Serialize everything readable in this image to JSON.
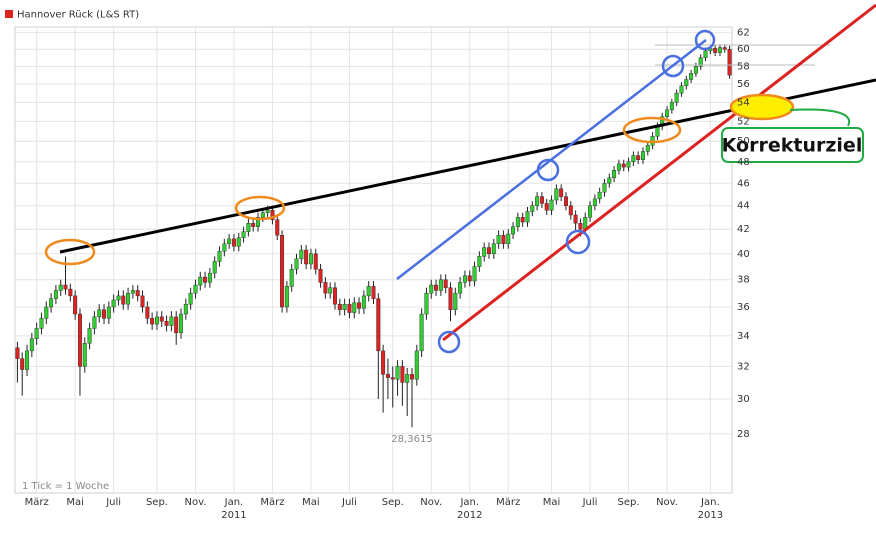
{
  "chart_data": {
    "type": "candlestick",
    "title": "Hannover Rück (L&S RT)",
    "title_marker_color": "#dd2222",
    "colors": {
      "up": "#33cc33",
      "down": "#dd2222",
      "wick": "#222222"
    },
    "log_scale": true,
    "grid": true,
    "ylim": [
      24.9,
      62.7
    ],
    "yticks": [
      28,
      30,
      32,
      34,
      36,
      38,
      40,
      42,
      44,
      46,
      48,
      50,
      52,
      54,
      56,
      58,
      60,
      62
    ],
    "categories": [
      null,
      null,
      null,
      null,
      "März",
      null,
      null,
      null,
      null,
      null,
      null,
      null,
      "Mai",
      null,
      null,
      null,
      null,
      null,
      null,
      null,
      "Juli",
      null,
      null,
      null,
      null,
      null,
      null,
      null,
      null,
      "Sep.",
      null,
      null,
      null,
      null,
      null,
      null,
      null,
      "Nov.",
      null,
      null,
      null,
      null,
      null,
      null,
      null,
      "Jan.",
      null,
      null,
      null,
      null,
      null,
      null,
      null,
      "März",
      null,
      null,
      null,
      null,
      null,
      null,
      null,
      "Mai",
      null,
      null,
      null,
      null,
      null,
      null,
      null,
      "Juli",
      null,
      null,
      null,
      null,
      null,
      null,
      null,
      null,
      "Sep.",
      null,
      null,
      null,
      null,
      null,
      null,
      null,
      "Nov.",
      null,
      null,
      null,
      null,
      null,
      null,
      null,
      "Jan.",
      null,
      null,
      null,
      null,
      null,
      null,
      null,
      "März",
      null,
      null,
      null,
      null,
      null,
      null,
      null,
      null,
      "Mai",
      null,
      null,
      null,
      null,
      null,
      null,
      null,
      "Juli",
      null,
      null,
      null,
      null,
      null,
      null,
      null,
      "Sep.",
      null,
      null,
      null,
      null,
      null,
      null,
      null,
      "Nov.",
      null,
      null,
      null,
      null,
      null,
      null,
      null,
      null,
      "Jan.",
      null,
      null,
      null,
      null
    ],
    "category_years": [
      null,
      null,
      null,
      null,
      null,
      null,
      null,
      null,
      null,
      null,
      null,
      null,
      null,
      null,
      null,
      null,
      null,
      null,
      null,
      null,
      null,
      null,
      null,
      null,
      null,
      null,
      null,
      null,
      null,
      null,
      null,
      null,
      null,
      null,
      null,
      null,
      null,
      null,
      null,
      null,
      null,
      null,
      null,
      null,
      null,
      "2011",
      null,
      null,
      null,
      null,
      null,
      null,
      null,
      null,
      null,
      null,
      null,
      null,
      null,
      null,
      null,
      null,
      null,
      null,
      null,
      null,
      null,
      null,
      null,
      null,
      null,
      null,
      null,
      null,
      null,
      null,
      null,
      null,
      null,
      null,
      null,
      null,
      null,
      null,
      null,
      null,
      null,
      null,
      null,
      null,
      null,
      null,
      null,
      null,
      "2012",
      null,
      null,
      null,
      null,
      null,
      null,
      null,
      null,
      null,
      null,
      null,
      null,
      null,
      null,
      null,
      null,
      null,
      null,
      null,
      null,
      null,
      null,
      null,
      null,
      null,
      null,
      null,
      null,
      null,
      null,
      null,
      null,
      null,
      null,
      null,
      null,
      null,
      null,
      null,
      null,
      null,
      null,
      null,
      null,
      null,
      null,
      null,
      null,
      null,
      "2013",
      null,
      null,
      null,
      null
    ],
    "open": [
      33.2,
      32.5,
      31.8,
      33.0,
      33.8,
      34.5,
      35.2,
      36.0,
      36.6,
      37.2,
      37.6,
      37.3,
      36.8,
      35.5,
      32.0,
      33.5,
      34.5,
      35.3,
      35.8,
      35.2,
      36.0,
      36.5,
      36.8,
      36.2,
      37.0,
      37.2,
      36.8,
      36.0,
      35.2,
      34.8,
      35.3,
      35.0,
      34.7,
      35.3,
      34.2,
      35.5,
      36.2,
      37.0,
      37.6,
      38.2,
      37.8,
      38.5,
      39.4,
      40.2,
      40.8,
      41.2,
      40.6,
      41.3,
      41.8,
      42.5,
      42.2,
      43.0,
      43.4,
      43.6,
      42.8,
      41.5,
      36.0,
      37.5,
      38.8,
      39.6,
      40.3,
      39.2,
      40.0,
      38.8,
      37.8,
      37.0,
      37.4,
      36.2,
      35.8,
      36.2,
      35.6,
      36.3,
      35.9,
      36.8,
      37.5,
      36.6,
      33.0,
      31.5,
      31.3,
      31.2,
      32.0,
      31.0,
      31.5,
      31.2,
      33.0,
      35.5,
      37.0,
      37.6,
      37.2,
      38.0,
      37.4,
      35.8,
      37.0,
      37.8,
      38.3,
      37.9,
      39.0,
      39.8,
      40.5,
      40.0,
      40.8,
      41.5,
      40.8,
      41.6,
      42.2,
      43.0,
      42.6,
      43.5,
      44.0,
      44.8,
      44.2,
      43.6,
      44.5,
      45.5,
      44.8,
      44.0,
      43.2,
      42.5,
      42.0,
      43.0,
      44.0,
      44.6,
      45.2,
      46.0,
      46.5,
      47.2,
      47.8,
      47.5,
      48.0,
      48.6,
      48.2,
      49.0,
      49.6,
      50.5,
      51.5,
      52.5,
      53.2,
      54.0,
      55.0,
      55.8,
      56.5,
      57.2,
      58.0,
      59.0,
      59.8,
      60.1,
      59.6,
      60.2,
      60.0
    ],
    "high": [
      33.6,
      32.9,
      33.4,
      34.2,
      34.9,
      35.6,
      36.4,
      37.0,
      37.6,
      38.0,
      39.8,
      37.7,
      37.2,
      35.9,
      33.9,
      34.9,
      35.7,
      36.2,
      36.2,
      36.4,
      36.9,
      37.2,
      37.2,
      37.4,
      37.6,
      37.6,
      37.2,
      36.4,
      35.6,
      35.7,
      35.7,
      35.4,
      35.7,
      35.7,
      35.9,
      36.6,
      37.4,
      38.0,
      38.6,
      38.6,
      38.9,
      39.8,
      40.6,
      41.2,
      41.6,
      41.6,
      41.7,
      42.2,
      42.9,
      42.9,
      43.4,
      43.8,
      44.0,
      44.0,
      43.2,
      41.9,
      37.9,
      39.2,
      40.0,
      40.7,
      40.7,
      40.4,
      40.4,
      39.2,
      38.2,
      37.8,
      37.8,
      36.6,
      36.6,
      36.6,
      36.7,
      36.7,
      37.2,
      37.9,
      37.9,
      37.0,
      33.4,
      32.5,
      32.0,
      32.4,
      32.4,
      31.9,
      31.9,
      33.4,
      35.9,
      37.4,
      38.0,
      38.0,
      38.4,
      38.4,
      37.8,
      37.4,
      38.2,
      38.7,
      38.7,
      39.4,
      40.2,
      40.9,
      40.9,
      41.2,
      41.9,
      41.9,
      42.0,
      42.6,
      43.4,
      43.4,
      43.9,
      44.4,
      45.2,
      45.2,
      44.6,
      44.9,
      45.9,
      45.9,
      45.2,
      44.4,
      43.6,
      42.9,
      43.4,
      44.4,
      45.0,
      45.6,
      46.4,
      46.9,
      47.6,
      48.2,
      48.2,
      48.4,
      49.0,
      49.0,
      49.4,
      50.0,
      50.9,
      51.9,
      52.9,
      53.6,
      54.4,
      55.4,
      56.2,
      56.9,
      57.6,
      58.4,
      59.4,
      60.2,
      60.5,
      60.5,
      60.6,
      60.6,
      60.4
    ],
    "low": [
      31.0,
      30.2,
      31.4,
      32.6,
      33.4,
      34.1,
      34.8,
      35.6,
      36.2,
      36.8,
      36.9,
      36.4,
      35.1,
      30.2,
      31.6,
      33.1,
      34.1,
      34.9,
      34.8,
      34.8,
      35.6,
      36.1,
      35.8,
      35.8,
      36.6,
      36.4,
      35.6,
      34.8,
      34.4,
      34.4,
      34.6,
      34.3,
      34.3,
      33.4,
      33.8,
      35.1,
      35.8,
      36.6,
      37.2,
      37.4,
      37.4,
      38.1,
      39.0,
      39.8,
      40.4,
      40.2,
      40.2,
      40.9,
      41.4,
      41.8,
      41.8,
      42.6,
      43.0,
      42.4,
      41.1,
      35.6,
      35.6,
      37.1,
      38.4,
      39.2,
      38.8,
      38.8,
      38.4,
      37.4,
      36.6,
      36.6,
      35.8,
      35.4,
      35.4,
      35.2,
      35.2,
      35.5,
      35.5,
      36.4,
      36.2,
      30.0,
      29.2,
      30.0,
      29.5,
      30.2,
      29.6,
      29.0,
      28.3615,
      30.8,
      32.6,
      35.1,
      36.6,
      36.8,
      36.8,
      37.0,
      35.0,
      35.4,
      36.6,
      37.4,
      37.5,
      37.5,
      38.6,
      39.4,
      39.6,
      39.6,
      40.4,
      40.4,
      40.4,
      41.2,
      41.8,
      42.2,
      42.2,
      43.1,
      43.6,
      43.8,
      43.2,
      43.2,
      44.1,
      44.4,
      43.6,
      42.8,
      41.8,
      41.4,
      41.6,
      42.6,
      43.6,
      44.2,
      44.8,
      45.6,
      46.1,
      46.8,
      47.1,
      47.1,
      47.6,
      47.8,
      47.8,
      48.6,
      49.2,
      50.1,
      51.1,
      52.1,
      52.8,
      53.6,
      54.6,
      55.4,
      56.1,
      56.8,
      57.6,
      58.6,
      59.4,
      59.2,
      59.2,
      59.6,
      56.6
    ],
    "close": [
      32.5,
      31.8,
      33.0,
      33.8,
      34.5,
      35.2,
      36.0,
      36.6,
      37.2,
      37.6,
      37.3,
      36.8,
      35.5,
      32.0,
      33.5,
      34.5,
      35.3,
      35.8,
      35.2,
      36.0,
      36.5,
      36.8,
      36.2,
      37.0,
      37.2,
      36.8,
      36.0,
      35.2,
      34.8,
      35.3,
      35.0,
      34.7,
      35.3,
      34.2,
      35.5,
      36.2,
      37.0,
      37.6,
      38.2,
      37.8,
      38.5,
      39.4,
      40.2,
      40.8,
      41.2,
      40.6,
      41.3,
      41.8,
      42.5,
      42.2,
      43.0,
      43.4,
      43.6,
      42.8,
      41.5,
      36.0,
      37.5,
      38.8,
      39.6,
      40.3,
      39.2,
      40.0,
      38.8,
      37.8,
      37.0,
      37.4,
      36.2,
      35.8,
      36.2,
      35.6,
      36.3,
      35.9,
      36.8,
      37.5,
      36.6,
      33.0,
      31.5,
      31.3,
      31.2,
      32.0,
      31.0,
      31.5,
      31.2,
      33.0,
      35.5,
      37.0,
      37.6,
      37.2,
      38.0,
      37.4,
      35.8,
      37.0,
      37.8,
      38.3,
      37.9,
      39.0,
      39.8,
      40.5,
      40.0,
      40.8,
      41.5,
      40.8,
      41.6,
      42.2,
      43.0,
      42.6,
      43.5,
      44.0,
      44.8,
      44.2,
      43.6,
      44.5,
      45.5,
      44.8,
      44.0,
      43.2,
      42.5,
      42.0,
      43.0,
      44.0,
      44.6,
      45.2,
      46.0,
      46.5,
      47.2,
      47.8,
      47.5,
      48.0,
      48.6,
      48.2,
      49.0,
      49.6,
      50.5,
      51.5,
      52.5,
      53.2,
      54.0,
      55.0,
      55.8,
      56.5,
      57.2,
      58.0,
      59.0,
      59.8,
      60.1,
      59.6,
      60.2,
      60.0,
      57.0
    ],
    "annotations": {
      "low_label": "28,3615",
      "tick_note": "1 Tick = 1 Woche",
      "callout": "Korrekturziel"
    }
  }
}
